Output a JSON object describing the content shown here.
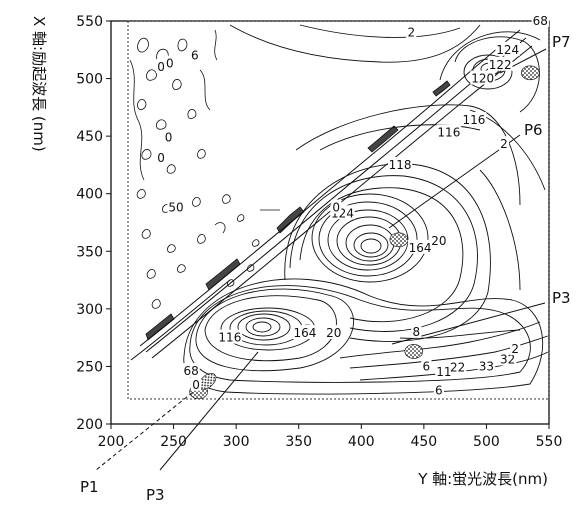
{
  "chart_data": {
    "type": "contour",
    "xlabel": "Y 軸:蛍光波長(nm)",
    "ylabel": "X 軸:励起波長 (nm)",
    "xlim": [
      200,
      550
    ],
    "ylim": [
      200,
      550
    ],
    "x_ticks": [
      200,
      250,
      300,
      350,
      400,
      450,
      500,
      550
    ],
    "y_ticks": [
      200,
      250,
      300,
      350,
      400,
      450,
      500,
      550
    ],
    "grid": false,
    "contour_labels": [
      {
        "text": "2",
        "x": 440,
        "y": 540
      },
      {
        "text": "68",
        "x": 543,
        "y": 550
      },
      {
        "text": "124",
        "x": 517,
        "y": 525
      },
      {
        "text": "122",
        "x": 511,
        "y": 512
      },
      {
        "text": "120",
        "x": 497,
        "y": 500
      },
      {
        "text": "116",
        "x": 490,
        "y": 464
      },
      {
        "text": "116",
        "x": 470,
        "y": 453
      },
      {
        "text": "2",
        "x": 514,
        "y": 443
      },
      {
        "text": "118",
        "x": 431,
        "y": 425
      },
      {
        "text": "124",
        "x": 385,
        "y": 383
      },
      {
        "text": "164",
        "x": 447,
        "y": 353
      },
      {
        "text": "20",
        "x": 462,
        "y": 359
      },
      {
        "text": "116",
        "x": 295,
        "y": 275
      },
      {
        "text": "164",
        "x": 355,
        "y": 279
      },
      {
        "text": "20",
        "x": 378,
        "y": 279
      },
      {
        "text": "8",
        "x": 444,
        "y": 280
      },
      {
        "text": "6",
        "x": 452,
        "y": 250
      },
      {
        "text": "11",
        "x": 466,
        "y": 245
      },
      {
        "text": "22",
        "x": 477,
        "y": 249
      },
      {
        "text": "33",
        "x": 500,
        "y": 250
      },
      {
        "text": "32",
        "x": 517,
        "y": 256
      },
      {
        "text": "2",
        "x": 523,
        "y": 265
      },
      {
        "text": "6",
        "x": 462,
        "y": 229
      },
      {
        "text": "68",
        "x": 264,
        "y": 246
      },
      {
        "text": "0",
        "x": 268,
        "y": 234
      },
      {
        "text": "0",
        "x": 380,
        "y": 388
      },
      {
        "text": "50",
        "x": 252,
        "y": 388
      },
      {
        "text": "0",
        "x": 240,
        "y": 510
      },
      {
        "text": "0",
        "x": 247,
        "y": 513
      },
      {
        "text": "6",
        "x": 267,
        "y": 520
      },
      {
        "text": "0",
        "x": 246,
        "y": 449
      },
      {
        "text": "0",
        "x": 240,
        "y": 431
      }
    ],
    "peaks": [
      {
        "label": "P7",
        "x": 535,
        "y": 505
      },
      {
        "label": "P6",
        "x": 430,
        "y": 360
      },
      {
        "label": "P3",
        "x": 357,
        "y": 280
      },
      {
        "label": "P3",
        "x": 442,
        "y": 263
      },
      {
        "label": "P1",
        "x": 270,
        "y": 228
      }
    ],
    "callouts": [
      {
        "text": "P7"
      },
      {
        "text": "P6"
      },
      {
        "text": "P3"
      },
      {
        "text": "P1"
      },
      {
        "text": "P3"
      }
    ]
  }
}
